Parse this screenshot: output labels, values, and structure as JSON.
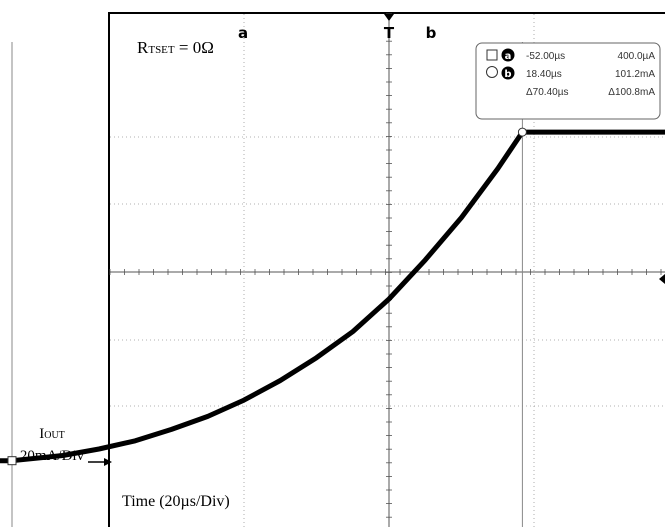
{
  "figure": {
    "condition_label": "R",
    "condition_subscript": "TSET",
    "condition_value": " = 0Ω",
    "time_label": "Time (20µs/Div)",
    "y_label_main": "I",
    "y_label_sub": "OUT",
    "y_scale": "20mA/Div",
    "trigger_marker": "T"
  },
  "cursors": {
    "a": {
      "glyph": "a",
      "time": "-52.00µs",
      "value": "400.0µA"
    },
    "b": {
      "glyph": "b",
      "time": "18.40µs",
      "value": "101.2mA"
    },
    "delta": {
      "time": "Δ70.40µs",
      "value": "Δ100.8mA"
    }
  },
  "chart_data": {
    "type": "line",
    "title": "",
    "xlabel": "Time (20µs/Div)",
    "ylabel": "IOUT 20mA/Div",
    "x_unit": "µs",
    "y_unit": "mA",
    "x_div": 20,
    "y_div": 20,
    "xlim": [
      -80,
      110
    ],
    "ylim": [
      -5,
      118
    ],
    "grid": true,
    "series": [
      {
        "name": "IOUT",
        "x": [
          -80,
          -52,
          -45,
          -40,
          -35,
          -30,
          -25,
          -20,
          -15,
          -10,
          -5,
          0,
          5,
          10,
          15,
          18.4,
          30,
          50,
          70,
          90,
          110
        ],
        "y": [
          0.4,
          0.4,
          2,
          4,
          6.5,
          10,
          14,
          19,
          25,
          32,
          40,
          50,
          62,
          75,
          90,
          101.2,
          101.2,
          101.2,
          101.2,
          101.2,
          101.2
        ]
      }
    ]
  }
}
